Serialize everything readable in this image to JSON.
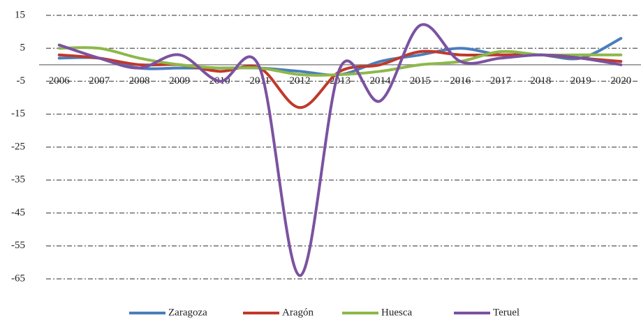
{
  "chart_data": {
    "type": "line",
    "categories": [
      "2006",
      "2007",
      "2008",
      "2009",
      "2010",
      "2011",
      "2012",
      "2013",
      "2014",
      "2015",
      "2016",
      "2017",
      "2018",
      "2019",
      "2020"
    ],
    "series": [
      {
        "name": "Zaragoza",
        "color": "#4a7ebb",
        "values": [
          2,
          2,
          -1,
          -1,
          -1,
          -1,
          -2,
          -3,
          1,
          3,
          5,
          3,
          3,
          2,
          8
        ]
      },
      {
        "name": "Aragón",
        "color": "#c0392b",
        "values": [
          3,
          2,
          0,
          0,
          -2,
          -1,
          -13,
          -2,
          0,
          4,
          3,
          3,
          3,
          2,
          1
        ]
      },
      {
        "name": "Huesca",
        "color": "#8db84a",
        "values": [
          5,
          5,
          2,
          0,
          -1,
          -1,
          -3,
          -3,
          -2,
          0,
          1,
          4,
          3,
          3,
          3
        ]
      },
      {
        "name": "Teruel",
        "color": "#7b52a0",
        "values": [
          6,
          2,
          -1,
          3,
          -5,
          -1,
          -64,
          -1,
          -11,
          12,
          1,
          2,
          3,
          2,
          0
        ]
      }
    ],
    "ylim": [
      -65,
      15
    ],
    "yticks": [
      -65,
      -55,
      -45,
      -35,
      -25,
      -15,
      -5,
      5,
      15
    ],
    "grid": true,
    "legend": "bottom"
  }
}
